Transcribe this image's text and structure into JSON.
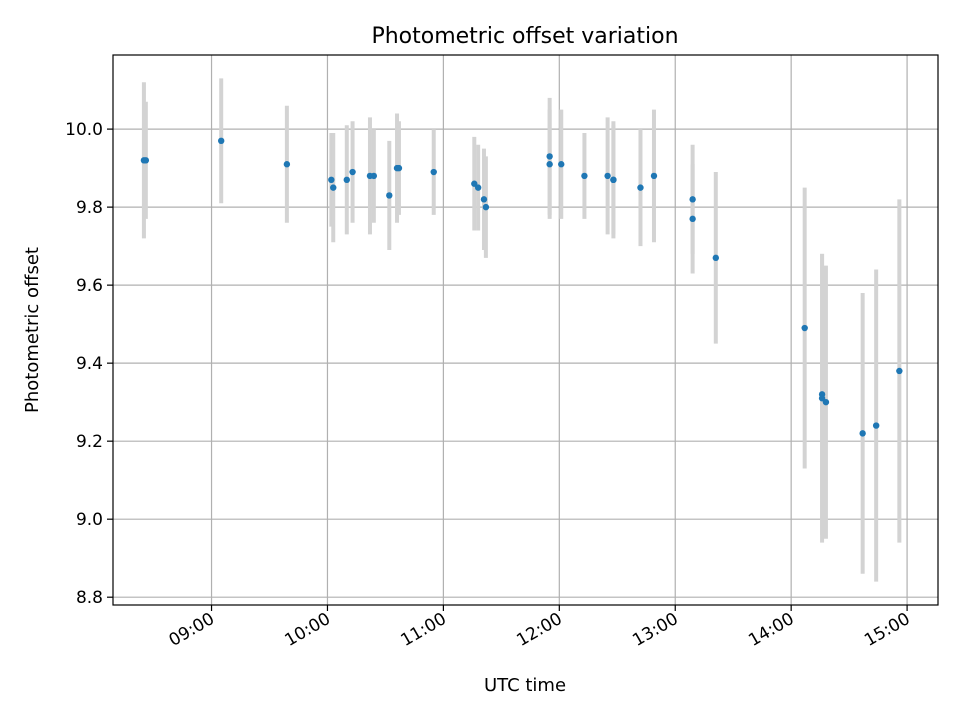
{
  "chart_data": {
    "type": "scatter",
    "title": "Photometric offset variation",
    "xlabel": "UTC time",
    "ylabel": "Photometric offset",
    "x_tick_labels": [
      "09:00",
      "10:00",
      "11:00",
      "12:00",
      "13:00",
      "14:00",
      "15:00"
    ],
    "y_tick_labels": [
      "8.8",
      "9.0",
      "9.2",
      "9.4",
      "9.6",
      "9.8",
      "10.0"
    ],
    "xlim": [
      "08:09",
      "15:16"
    ],
    "ylim": [
      8.78,
      10.19
    ],
    "grid": true,
    "point_color": "#1f77b4",
    "errorbar_color": "#d3d3d3",
    "points": [
      {
        "x": "08:25",
        "y": 9.92,
        "err": 0.2
      },
      {
        "x": "08:26",
        "y": 9.92,
        "err": 0.15
      },
      {
        "x": "09:05",
        "y": 9.97,
        "err": 0.16
      },
      {
        "x": "09:39",
        "y": 9.91,
        "err": 0.15
      },
      {
        "x": "10:02",
        "y": 9.87,
        "err": 0.12
      },
      {
        "x": "10:03",
        "y": 9.85,
        "err": 0.14
      },
      {
        "x": "10:10",
        "y": 9.87,
        "err": 0.14
      },
      {
        "x": "10:13",
        "y": 9.89,
        "err": 0.13
      },
      {
        "x": "10:22",
        "y": 9.88,
        "err": 0.15
      },
      {
        "x": "10:24",
        "y": 9.88,
        "err": 0.12
      },
      {
        "x": "10:32",
        "y": 9.83,
        "err": 0.14
      },
      {
        "x": "10:36",
        "y": 9.9,
        "err": 0.14
      },
      {
        "x": "10:37",
        "y": 9.9,
        "err": 0.12
      },
      {
        "x": "10:55",
        "y": 9.89,
        "err": 0.11
      },
      {
        "x": "11:16",
        "y": 9.86,
        "err": 0.12
      },
      {
        "x": "11:18",
        "y": 9.85,
        "err": 0.11
      },
      {
        "x": "11:21",
        "y": 9.82,
        "err": 0.13
      },
      {
        "x": "11:22",
        "y": 9.8,
        "err": 0.13
      },
      {
        "x": "11:55",
        "y": 9.93,
        "err": 0.15
      },
      {
        "x": "11:55",
        "y": 9.91,
        "err": 0.14
      },
      {
        "x": "12:01",
        "y": 9.91,
        "err": 0.14
      },
      {
        "x": "12:13",
        "y": 9.88,
        "err": 0.11
      },
      {
        "x": "12:25",
        "y": 9.88,
        "err": 0.15
      },
      {
        "x": "12:28",
        "y": 9.87,
        "err": 0.14
      },
      {
        "x": "12:28",
        "y": 9.87,
        "err": 0.15
      },
      {
        "x": "12:42",
        "y": 9.85,
        "err": 0.15
      },
      {
        "x": "12:49",
        "y": 9.88,
        "err": 0.17
      },
      {
        "x": "13:09",
        "y": 9.77,
        "err": 0.14
      },
      {
        "x": "13:09",
        "y": 9.82,
        "err": 0.14
      },
      {
        "x": "13:21",
        "y": 9.67,
        "err": 0.22
      },
      {
        "x": "14:07",
        "y": 9.49,
        "err": 0.36
      },
      {
        "x": "14:16",
        "y": 9.32,
        "err": 0.36
      },
      {
        "x": "14:16",
        "y": 9.31,
        "err": 0.37
      },
      {
        "x": "14:18",
        "y": 9.3,
        "err": 0.35
      },
      {
        "x": "14:37",
        "y": 9.22,
        "err": 0.36
      },
      {
        "x": "14:44",
        "y": 9.24,
        "err": 0.4
      },
      {
        "x": "14:56",
        "y": 9.38,
        "err": 0.44
      }
    ]
  }
}
